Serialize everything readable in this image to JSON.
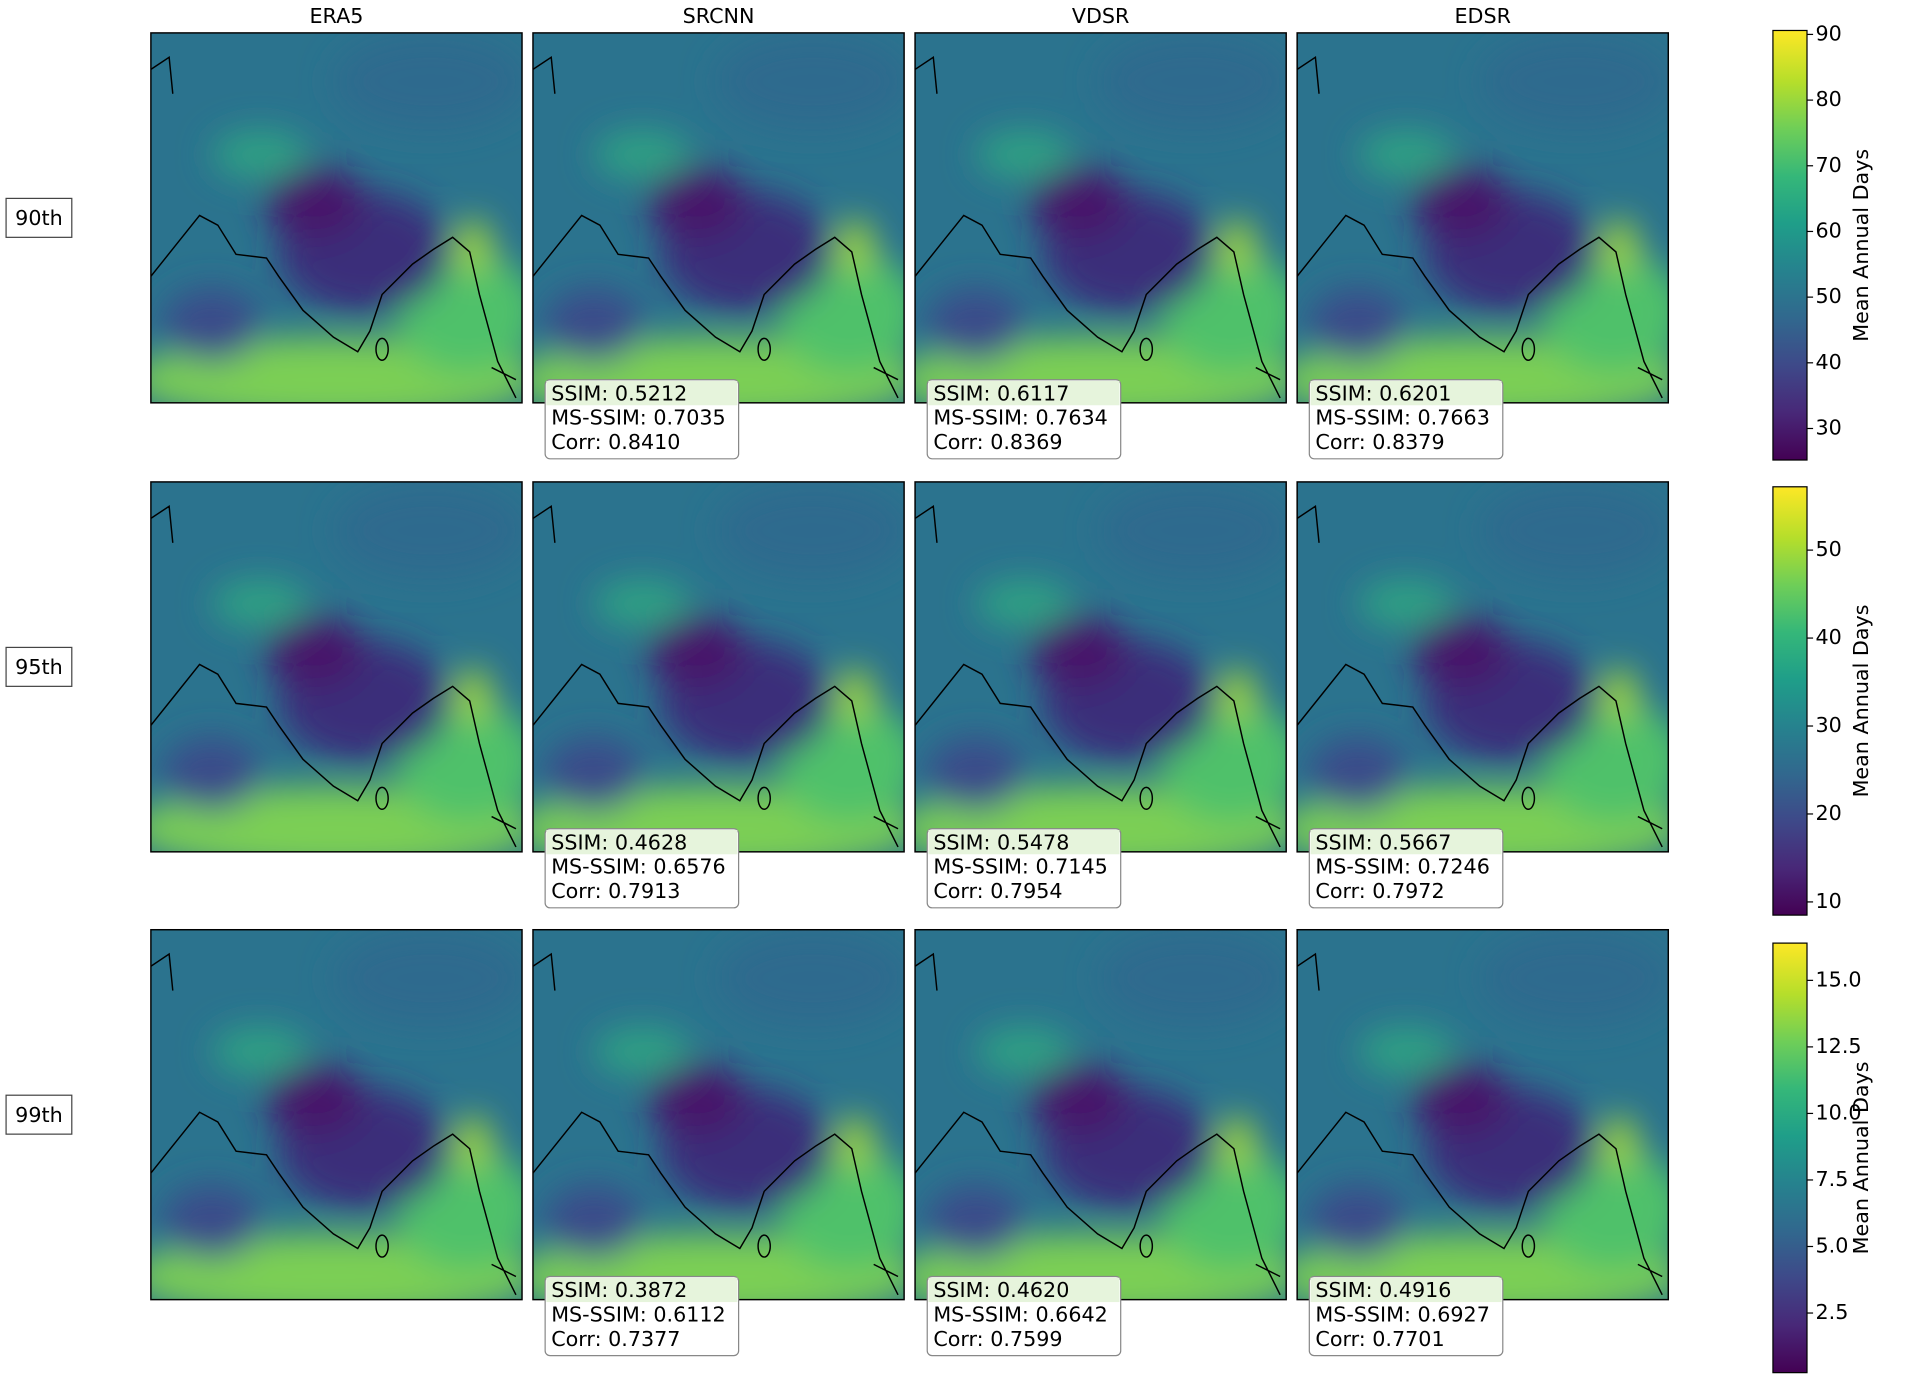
{
  "columns": [
    "ERA5",
    "SRCNN",
    "VDSR",
    "EDSR"
  ],
  "rows": [
    {
      "label": "90th",
      "metrics": [
        [
          "SSIM: 0.5212",
          "MS-SSIM: 0.7035",
          "Corr: 0.8410"
        ],
        [
          "SSIM: 0.6117",
          "MS-SSIM: 0.7634",
          "Corr: 0.8369"
        ],
        [
          "SSIM: 0.6201",
          "MS-SSIM: 0.7663",
          "Corr: 0.8379"
        ]
      ],
      "colorbar": {
        "label": "Mean Annual Days",
        "lim": [
          25.2,
          90.6
        ],
        "ticks": [
          30,
          40,
          50,
          60,
          70,
          80,
          90
        ]
      }
    },
    {
      "label": "95th",
      "metrics": [
        [
          "SSIM: 0.4628",
          "MS-SSIM: 0.6576",
          "Corr: 0.7913"
        ],
        [
          "SSIM: 0.5478",
          "MS-SSIM: 0.7145",
          "Corr: 0.7954"
        ],
        [
          "SSIM: 0.5667",
          "MS-SSIM: 0.7246",
          "Corr: 0.7972"
        ]
      ],
      "colorbar": {
        "label": "Mean Annual Days",
        "lim": [
          8.5,
          57.2
        ],
        "ticks": [
          10,
          20,
          30,
          40,
          50
        ]
      }
    },
    {
      "label": "99th",
      "metrics": [
        [
          "SSIM: 0.3872",
          "MS-SSIM: 0.6112",
          "Corr: 0.7377"
        ],
        [
          "SSIM: 0.4620",
          "MS-SSIM: 0.6642",
          "Corr: 0.7599"
        ],
        [
          "SSIM: 0.4916",
          "MS-SSIM: 0.6927",
          "Corr: 0.7701"
        ]
      ],
      "colorbar": {
        "label": "Mean Annual Days",
        "lim": [
          0.26,
          16.4
        ],
        "ticks": [
          {
            "value": 2.5,
            "label": "2.5"
          },
          {
            "value": 5,
            "label": "5.0"
          },
          {
            "value": 7.5,
            "label": "7.5"
          },
          {
            "value": 10,
            "label": "10.0"
          },
          {
            "value": 12.5,
            "label": "12.5"
          },
          {
            "value": 15,
            "label": "15.0"
          }
        ]
      }
    }
  ]
}
